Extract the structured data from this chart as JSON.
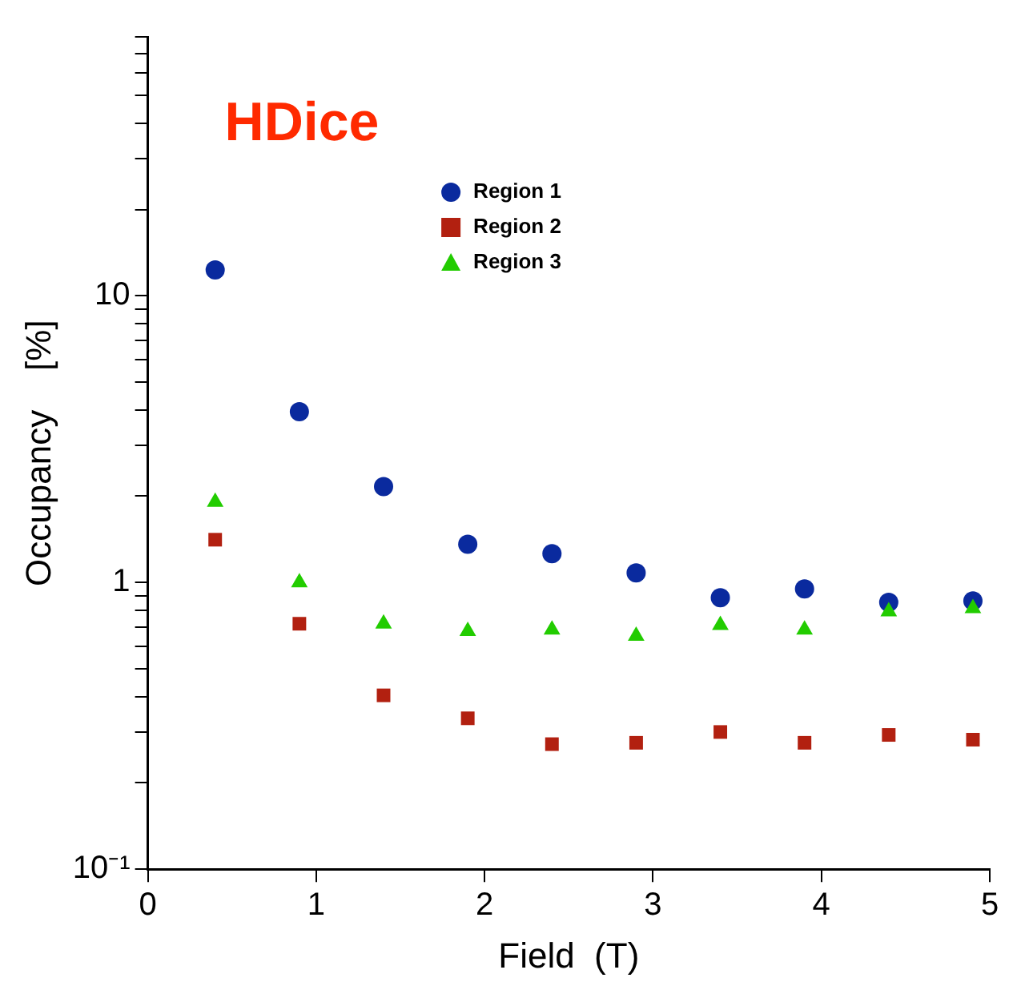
{
  "chart_data": {
    "type": "scatter",
    "title": "HDice",
    "xlabel": "Field  (T)",
    "ylabel": "Occupancy    [%]",
    "x": [
      0.4,
      0.9,
      1.4,
      1.9,
      2.4,
      2.9,
      3.4,
      3.9,
      4.4,
      4.9
    ],
    "series": [
      {
        "name": "Region 1",
        "color": "#0a2a9e",
        "marker": "circle",
        "values": [
          12.3,
          3.94,
          2.16,
          1.36,
          1.26,
          1.08,
          0.885,
          0.95,
          0.853,
          0.863
        ]
      },
      {
        "name": "Region 2",
        "color": "#b22010",
        "marker": "square",
        "values": [
          1.41,
          0.718,
          0.404,
          0.336,
          0.273,
          0.276,
          0.301,
          0.276,
          0.294,
          0.283
        ]
      },
      {
        "name": "Region 3",
        "color": "#22cc00",
        "marker": "triangle",
        "values": [
          1.91,
          1.0,
          0.718,
          0.676,
          0.684,
          0.651,
          0.71,
          0.684,
          0.792,
          0.812
        ]
      }
    ],
    "log": "y",
    "grid": false,
    "legend": "top",
    "xlim": [
      0,
      5
    ],
    "xticks": [
      0,
      1,
      2,
      3,
      4,
      5
    ],
    "ylim": [
      0.1,
      80
    ],
    "yticks": [
      {
        "value": 0.1,
        "label": "10⁻¹"
      },
      {
        "value": 0.2,
        "label": null
      },
      {
        "value": 0.3,
        "label": null
      },
      {
        "value": 0.4,
        "label": null
      },
      {
        "value": 0.5,
        "label": null
      },
      {
        "value": 0.6,
        "label": null
      },
      {
        "value": 0.7,
        "label": null
      },
      {
        "value": 0.8,
        "label": null
      },
      {
        "value": 0.9,
        "label": null
      },
      1,
      {
        "value": 2,
        "label": null
      },
      {
        "value": 3,
        "label": null
      },
      {
        "value": 4,
        "label": null
      },
      {
        "value": 5,
        "label": null
      },
      {
        "value": 6,
        "label": null
      },
      {
        "value": 7,
        "label": null
      },
      {
        "value": 8,
        "label": null
      },
      {
        "value": 9,
        "label": null
      },
      10,
      {
        "value": 20,
        "label": null
      },
      {
        "value": 30,
        "label": null
      },
      {
        "value": 40,
        "label": null
      },
      {
        "value": 50,
        "label": null
      },
      {
        "value": 60,
        "label": null
      },
      {
        "value": 70,
        "label": null
      },
      {
        "value": 80,
        "label": null
      }
    ]
  }
}
